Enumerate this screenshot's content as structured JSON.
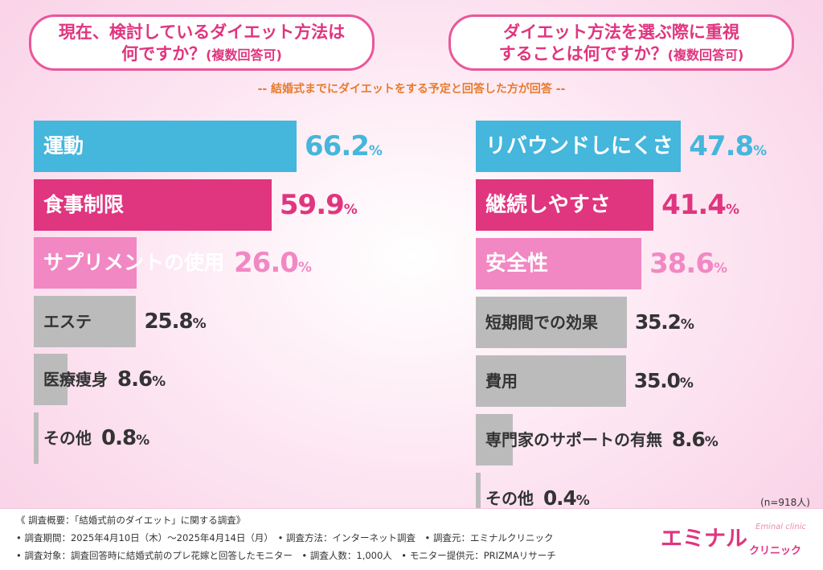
{
  "questions": {
    "left_line1": "現在、検討しているダイエット方法は",
    "left_line2": "何ですか？",
    "left_note": "(複数回答可)",
    "right_line1": "ダイエット方法を選ぶ際に重視",
    "right_line2": "することは何ですか？",
    "right_note": "(複数回答可)"
  },
  "subtitle": "-- 結婚式までにダイエットをする予定と回答した方が回答 --",
  "sample_note": "(n=918人)",
  "chart_data": [
    {
      "type": "bar",
      "orientation": "horizontal",
      "title": "現在、検討しているダイエット方法は何ですか？(複数回答可)",
      "categories": [
        "運動",
        "食事制限",
        "サプリメントの使用",
        "エステ",
        "医療痩身",
        "その他"
      ],
      "values": [
        66.2,
        59.9,
        26.0,
        25.8,
        8.6,
        0.8
      ],
      "value_labels": [
        "66.2",
        "59.9",
        "26.0",
        "25.8",
        "8.6",
        "0.8"
      ],
      "unit": "%",
      "colors": [
        "#45b6dc",
        "#e0357f",
        "#f188c3",
        "#bbbbbb",
        "#bbbbbb",
        "#bbbbbb"
      ],
      "label_colors": [
        "#ffffff",
        "#ffffff",
        "#ffffff",
        "#333333",
        "#333333",
        "#333333"
      ],
      "value_colors": [
        "#45b6dc",
        "#e0357f",
        "#f188c3",
        "#333333",
        "#333333",
        "#333333"
      ],
      "xlim": [
        0,
        100
      ]
    },
    {
      "type": "bar",
      "orientation": "horizontal",
      "title": "ダイエット方法を選ぶ際に重視することは何ですか？(複数回答可)",
      "categories": [
        "リバウンドしにくさ",
        "継続しやすさ",
        "安全性",
        "短期間での効果",
        "費用",
        "専門家のサポートの有無",
        "その他"
      ],
      "values": [
        47.8,
        41.4,
        38.6,
        35.2,
        35.0,
        8.6,
        0.4
      ],
      "value_labels": [
        "47.8",
        "41.4",
        "38.6",
        "35.2",
        "35.0",
        "8.6",
        "0.4"
      ],
      "unit": "%",
      "colors": [
        "#45b6dc",
        "#e0357f",
        "#f188c3",
        "#bbbbbb",
        "#bbbbbb",
        "#bbbbbb",
        "#bbbbbb"
      ],
      "label_colors": [
        "#ffffff",
        "#ffffff",
        "#ffffff",
        "#333333",
        "#333333",
        "#333333",
        "#333333"
      ],
      "value_colors": [
        "#45b6dc",
        "#e0357f",
        "#f188c3",
        "#333333",
        "#333333",
        "#333333",
        "#333333"
      ],
      "xlim": [
        0,
        100
      ]
    }
  ],
  "footer": {
    "line1": "《 調査概要：「結婚式前のダイエット」に関する調査》",
    "line2": "• 調査期間：2025年4月10日（木）〜2025年4月14日（月）　• 調査方法：インターネット調査　• 調査元：エミナルクリニック",
    "line3": "• 調査対象：調査回答時に結婚式前のプレ花嫁と回答したモニター　• 調査人数：1,000人　• モニター提供元：PRIZMAリサーチ"
  },
  "logo": {
    "main": "エミナル",
    "sub": "クリニック",
    "script": "Eminal clinic"
  }
}
